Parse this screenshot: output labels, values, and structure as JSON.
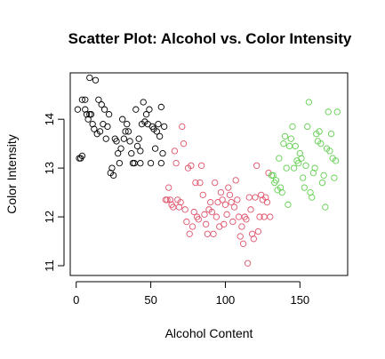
{
  "chart_data": {
    "type": "scatter",
    "title": "Scatter Plot: Alcohol vs. Color Intensity",
    "xlabel": "Alcohol Content",
    "ylabel": "Color Intensity",
    "xlim": [
      -4,
      182
    ],
    "ylim": [
      10.8,
      14.95
    ],
    "xticks": [
      0,
      50,
      100,
      150
    ],
    "yticks": [
      11,
      12,
      13,
      14
    ],
    "xtick_labels": [
      "0",
      "50",
      "100",
      "150"
    ],
    "ytick_labels": [
      "11",
      "12",
      "13",
      "14"
    ],
    "grid": false,
    "legend": null,
    "marker": "open-circle",
    "series": [
      {
        "color": "#000000",
        "points": [
          [
            1,
            14.2
          ],
          [
            2,
            13.2
          ],
          [
            3,
            13.2
          ],
          [
            4,
            14.4
          ],
          [
            4,
            13.25
          ],
          [
            6,
            14.2
          ],
          [
            6,
            14.4
          ],
          [
            7,
            14.1
          ],
          [
            8,
            14.0
          ],
          [
            9,
            14.85
          ],
          [
            9,
            14.1
          ],
          [
            10,
            14.1
          ],
          [
            11,
            13.9
          ],
          [
            12,
            13.8
          ],
          [
            13,
            14.8
          ],
          [
            14,
            13.7
          ],
          [
            15,
            14.4
          ],
          [
            16,
            13.75
          ],
          [
            17,
            14.3
          ],
          [
            18,
            13.9
          ],
          [
            19,
            14.2
          ],
          [
            20,
            13.6
          ],
          [
            21,
            13.85
          ],
          [
            22,
            14.1
          ],
          [
            23,
            12.9
          ],
          [
            24,
            13.0
          ],
          [
            25,
            12.85
          ],
          [
            26,
            13.6
          ],
          [
            27,
            13.55
          ],
          [
            28,
            13.3
          ],
          [
            29,
            13.1
          ],
          [
            30,
            13.4
          ],
          [
            31,
            14.0
          ],
          [
            32,
            13.6
          ],
          [
            33,
            13.75
          ],
          [
            34,
            13.9
          ],
          [
            35,
            13.75
          ],
          [
            36,
            13.55
          ],
          [
            37,
            13.3
          ],
          [
            38,
            13.1
          ],
          [
            39,
            13.1
          ],
          [
            40,
            14.2
          ],
          [
            41,
            13.45
          ],
          [
            42,
            13.6
          ],
          [
            43,
            13.35
          ],
          [
            43,
            13.1
          ],
          [
            44,
            13.9
          ],
          [
            45,
            14.35
          ],
          [
            46,
            13.95
          ],
          [
            47,
            14.1
          ],
          [
            48,
            13.9
          ],
          [
            49,
            14.2
          ],
          [
            50,
            13.1
          ],
          [
            51,
            13.85
          ],
          [
            52,
            13.8
          ],
          [
            53,
            13.4
          ],
          [
            54,
            13.75
          ],
          [
            55,
            13.9
          ],
          [
            56,
            13.65
          ],
          [
            57,
            13.1
          ],
          [
            57,
            14.25
          ],
          [
            58,
            13.3
          ],
          [
            59,
            13.85
          ]
        ]
      },
      {
        "color": "#DF536B",
        "points": [
          [
            60,
            12.35
          ],
          [
            61,
            12.35
          ],
          [
            62,
            12.6
          ],
          [
            63,
            12.35
          ],
          [
            64,
            12.25
          ],
          [
            65,
            12.2
          ],
          [
            66,
            13.35
          ],
          [
            67,
            13.1
          ],
          [
            68,
            12.35
          ],
          [
            69,
            12.2
          ],
          [
            70,
            12.3
          ],
          [
            71,
            13.85
          ],
          [
            72,
            13.5
          ],
          [
            73,
            12.15
          ],
          [
            74,
            11.9
          ],
          [
            75,
            13.0
          ],
          [
            76,
            11.65
          ],
          [
            77,
            13.05
          ],
          [
            78,
            11.8
          ],
          [
            79,
            12.1
          ],
          [
            80,
            12.7
          ],
          [
            81,
            12.0
          ],
          [
            82,
            11.95
          ],
          [
            83,
            12.7
          ],
          [
            84,
            13.05
          ],
          [
            85,
            12.45
          ],
          [
            86,
            12.05
          ],
          [
            87,
            11.85
          ],
          [
            88,
            11.65
          ],
          [
            89,
            12.15
          ],
          [
            90,
            12.3
          ],
          [
            91,
            12.1
          ],
          [
            92,
            11.65
          ],
          [
            93,
            12.7
          ],
          [
            94,
            12.0
          ],
          [
            95,
            12.3
          ],
          [
            96,
            11.8
          ],
          [
            97,
            12.5
          ],
          [
            98,
            12.35
          ],
          [
            99,
            11.85
          ],
          [
            100,
            12.25
          ],
          [
            101,
            12.05
          ],
          [
            102,
            12.6
          ],
          [
            103,
            12.45
          ],
          [
            104,
            12.3
          ],
          [
            105,
            11.9
          ],
          [
            106,
            12.2
          ],
          [
            107,
            12.75
          ],
          [
            108,
            12.35
          ],
          [
            109,
            12.0
          ],
          [
            110,
            11.6
          ],
          [
            111,
            11.8
          ],
          [
            112,
            11.45
          ],
          [
            113,
            12.0
          ],
          [
            114,
            11.95
          ],
          [
            115,
            11.05
          ],
          [
            116,
            12.4
          ],
          [
            117,
            12.15
          ],
          [
            118,
            11.65
          ],
          [
            119,
            11.55
          ],
          [
            120,
            12.4
          ],
          [
            121,
            13.05
          ],
          [
            122,
            11.7
          ],
          [
            123,
            12.0
          ],
          [
            124,
            12.45
          ],
          [
            125,
            12.35
          ],
          [
            126,
            12.0
          ],
          [
            127,
            12.4
          ],
          [
            128,
            12.3
          ],
          [
            129,
            12.9
          ],
          [
            130,
            12.0
          ]
        ]
      },
      {
        "color": "#61D04F",
        "points": [
          [
            131,
            12.85
          ],
          [
            132,
            12.85
          ],
          [
            133,
            12.7
          ],
          [
            134,
            12.75
          ],
          [
            135,
            12.55
          ],
          [
            136,
            13.2
          ],
          [
            137,
            12.6
          ],
          [
            138,
            12.5
          ],
          [
            139,
            13.5
          ],
          [
            140,
            13.65
          ],
          [
            141,
            13.0
          ],
          [
            142,
            12.25
          ],
          [
            143,
            13.45
          ],
          [
            144,
            13.6
          ],
          [
            145,
            13.85
          ],
          [
            146,
            13.0
          ],
          [
            147,
            13.45
          ],
          [
            148,
            13.15
          ],
          [
            149,
            13.1
          ],
          [
            150,
            13.3
          ],
          [
            151,
            13.2
          ],
          [
            152,
            12.8
          ],
          [
            153,
            12.6
          ],
          [
            154,
            13.05
          ],
          [
            155,
            13.85
          ],
          [
            156,
            14.35
          ],
          [
            157,
            12.5
          ],
          [
            158,
            12.4
          ],
          [
            159,
            12.9
          ],
          [
            160,
            13.0
          ],
          [
            161,
            13.7
          ],
          [
            162,
            13.55
          ],
          [
            163,
            13.75
          ],
          [
            164,
            13.5
          ],
          [
            165,
            12.7
          ],
          [
            166,
            12.85
          ],
          [
            167,
            12.2
          ],
          [
            168,
            13.4
          ],
          [
            169,
            14.15
          ],
          [
            170,
            13.35
          ],
          [
            171,
            13.7
          ],
          [
            172,
            13.2
          ],
          [
            173,
            12.8
          ],
          [
            174,
            13.15
          ],
          [
            175,
            14.15
          ]
        ]
      }
    ]
  }
}
